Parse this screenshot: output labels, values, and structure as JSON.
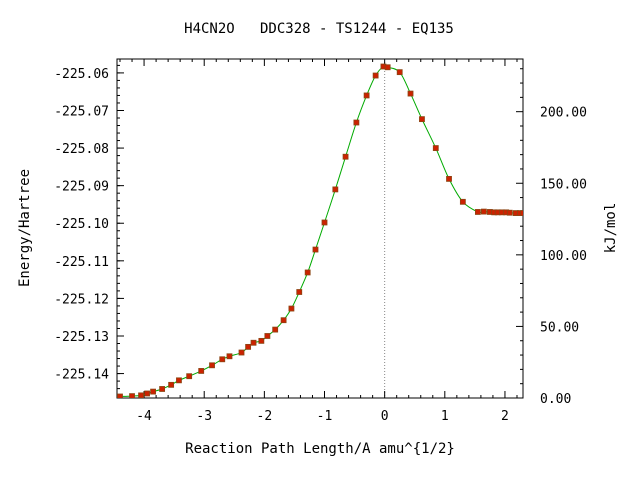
{
  "chart_data": {
    "type": "line",
    "title": "H4CN2O   DDC328 - TS1244 - EQ135",
    "xlabel": "Reaction Path Length/A amu^{1/2}",
    "ylabel": "Energy/Hartree",
    "y2label": "kJ/mol",
    "xlim": [
      -4.45,
      2.3
    ],
    "ylim": [
      -225.1465,
      -225.0563
    ],
    "y2lim": [
      0.0,
      236.8
    ],
    "xticks": [
      -4,
      -3,
      -2,
      -1,
      0,
      1,
      2
    ],
    "xtick_labels": [
      "-4",
      "-3",
      "-2",
      "-1",
      "0",
      "1",
      "2"
    ],
    "yticks": [
      -225.06,
      -225.07,
      -225.08,
      -225.09,
      -225.1,
      -225.11,
      -225.12,
      -225.13,
      -225.14
    ],
    "ytick_labels": [
      "-225.06",
      "-225.07",
      "-225.08",
      "-225.09",
      "-225.10",
      "-225.11",
      "-225.12",
      "-225.13",
      "-225.14"
    ],
    "y2ticks": [
      0,
      50,
      100,
      150,
      200
    ],
    "y2tick_labels": [
      "0.00",
      "50.00",
      "100.00",
      "150.00",
      "200.00"
    ],
    "ts_marker_x": 0.0,
    "grid": false,
    "line_color": "#00aa00",
    "marker_color": "#cc2200",
    "marker_edge_color": "#8b4513",
    "series": [
      {
        "x": [
          -4.4,
          -4.2,
          -4.05,
          -3.95,
          -3.85,
          -3.7,
          -3.55,
          -3.42,
          -3.25,
          -3.05,
          -2.87,
          -2.7,
          -2.58,
          -2.38,
          -2.27,
          -2.18,
          -2.05,
          -1.95,
          -1.82,
          -1.68,
          -1.55,
          -1.42,
          -1.28,
          -1.15,
          -1.0,
          -0.82,
          -0.65,
          -0.47,
          -0.3,
          -0.15,
          -0.02,
          0.05,
          0.25,
          0.43,
          0.62,
          0.85,
          1.07,
          1.3,
          1.55,
          1.65,
          1.75,
          1.82,
          1.88,
          1.95,
          2.02,
          2.08,
          2.18,
          2.25,
          2.3
        ],
        "y": [
          -225.1461,
          -225.146,
          -225.1458,
          -225.1453,
          -225.1448,
          -225.1441,
          -225.143,
          -225.1418,
          -225.1407,
          -225.1393,
          -225.1378,
          -225.1362,
          -225.1354,
          -225.1344,
          -225.1329,
          -225.1318,
          -225.1313,
          -225.13,
          -225.1283,
          -225.1258,
          -225.1227,
          -225.1183,
          -225.1131,
          -225.107,
          -225.0998,
          -225.091,
          -225.0823,
          -225.0732,
          -225.066,
          -225.0607,
          -225.0583,
          -225.0585,
          -225.0598,
          -225.0655,
          -225.0723,
          -225.08,
          -225.0882,
          -225.0943,
          -225.097,
          -225.0969,
          -225.097,
          -225.0971,
          -225.0971,
          -225.0971,
          -225.0971,
          -225.0972,
          -225.0973,
          -225.0973,
          -225.0973
        ]
      }
    ]
  }
}
